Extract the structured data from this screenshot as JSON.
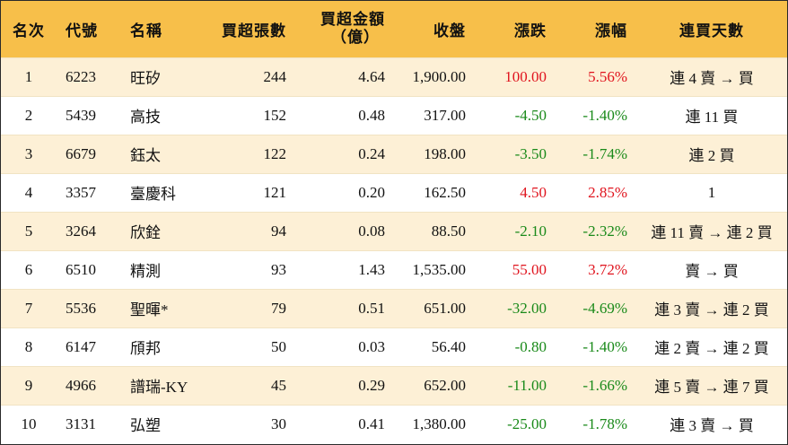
{
  "table": {
    "headers": {
      "rank": "名次",
      "code": "代號",
      "name": "名稱",
      "net_lots": "買超張數",
      "net_amount_l1": "買超金額",
      "net_amount_l2": "（億）",
      "close": "收盤",
      "change": "漲跌",
      "change_pct": "漲幅",
      "streak": "連買天數"
    },
    "colors": {
      "header_bg": "#f7bf4a",
      "odd_row_bg": "#fdf0d6",
      "up": "#e0141e",
      "down": "#1a8a1a"
    },
    "rows": [
      {
        "rank": "1",
        "code": "6223",
        "name": "旺矽",
        "net_lots": "244",
        "net_amount": "4.64",
        "close": "1,900.00",
        "change": "100.00",
        "change_pct": "5.56%",
        "direction": "up",
        "streak": "連 4 賣 → 買"
      },
      {
        "rank": "2",
        "code": "5439",
        "name": "高技",
        "net_lots": "152",
        "net_amount": "0.48",
        "close": "317.00",
        "change": "-4.50",
        "change_pct": "-1.40%",
        "direction": "down",
        "streak": "連 11 買"
      },
      {
        "rank": "3",
        "code": "6679",
        "name": "鈺太",
        "net_lots": "122",
        "net_amount": "0.24",
        "close": "198.00",
        "change": "-3.50",
        "change_pct": "-1.74%",
        "direction": "down",
        "streak": "連 2 買"
      },
      {
        "rank": "4",
        "code": "3357",
        "name": "臺慶科",
        "net_lots": "121",
        "net_amount": "0.20",
        "close": "162.50",
        "change": "4.50",
        "change_pct": "2.85%",
        "direction": "up",
        "streak": "1"
      },
      {
        "rank": "5",
        "code": "3264",
        "name": "欣銓",
        "net_lots": "94",
        "net_amount": "0.08",
        "close": "88.50",
        "change": "-2.10",
        "change_pct": "-2.32%",
        "direction": "down",
        "streak": "連 11 賣 → 連 2 買"
      },
      {
        "rank": "6",
        "code": "6510",
        "name": "精測",
        "net_lots": "93",
        "net_amount": "1.43",
        "close": "1,535.00",
        "change": "55.00",
        "change_pct": "3.72%",
        "direction": "up",
        "streak": "賣 → 買"
      },
      {
        "rank": "7",
        "code": "5536",
        "name": "聖暉*",
        "net_lots": "79",
        "net_amount": "0.51",
        "close": "651.00",
        "change": "-32.00",
        "change_pct": "-4.69%",
        "direction": "down",
        "streak": "連 3 賣 → 連 2 買"
      },
      {
        "rank": "8",
        "code": "6147",
        "name": "頎邦",
        "net_lots": "50",
        "net_amount": "0.03",
        "close": "56.40",
        "change": "-0.80",
        "change_pct": "-1.40%",
        "direction": "down",
        "streak": "連 2 賣 → 連 2 買"
      },
      {
        "rank": "9",
        "code": "4966",
        "name": "譜瑞-KY",
        "net_lots": "45",
        "net_amount": "0.29",
        "close": "652.00",
        "change": "-11.00",
        "change_pct": "-1.66%",
        "direction": "down",
        "streak": "連 5 賣 → 連 7 買"
      },
      {
        "rank": "10",
        "code": "3131",
        "name": "弘塑",
        "net_lots": "30",
        "net_amount": "0.41",
        "close": "1,380.00",
        "change": "-25.00",
        "change_pct": "-1.78%",
        "direction": "down",
        "streak": "連 3 賣 → 買"
      }
    ]
  }
}
